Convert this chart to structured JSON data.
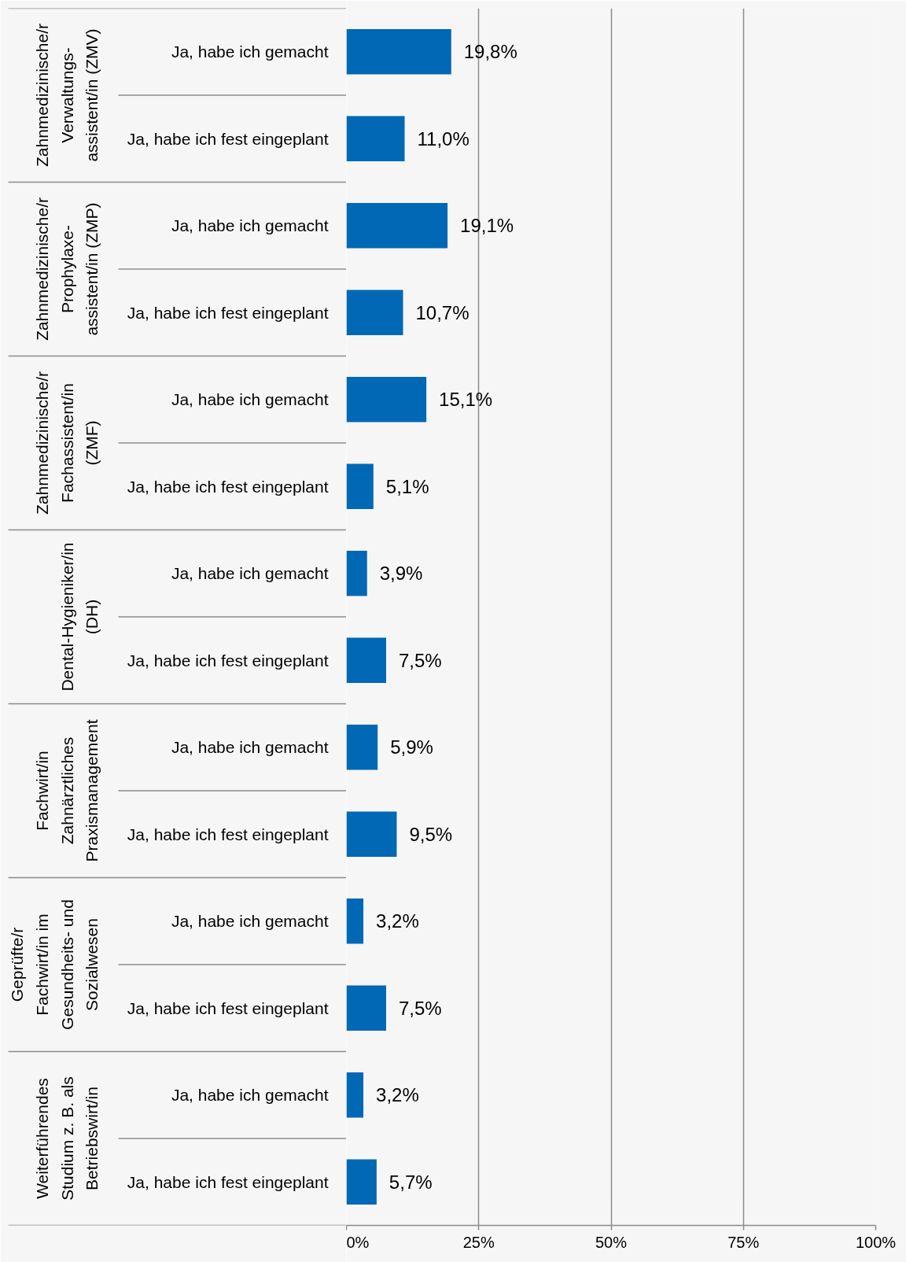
{
  "chart_data": {
    "type": "bar",
    "orientation": "horizontal",
    "categories": [
      "Ja, habe ich gemacht",
      "Ja, habe ich fest eingeplant",
      "Ja, habe ich gemacht",
      "Ja, habe ich fest eingeplant",
      "Ja, habe ich gemacht",
      "Ja, habe ich fest eingeplant",
      "Ja, habe ich gemacht",
      "Ja, habe ich fest eingeplant",
      "Ja, habe ich gemacht",
      "Ja, habe ich fest eingeplant",
      "Ja, habe ich gemacht",
      "Ja, habe ich fest eingeplant",
      "Ja, habe ich gemacht",
      "Ja, habe ich fest eingeplant"
    ],
    "values": [
      19.8,
      11.0,
      19.1,
      10.7,
      15.1,
      5.1,
      3.9,
      7.5,
      5.9,
      9.5,
      3.2,
      7.5,
      3.2,
      5.7
    ],
    "value_labels": [
      "19,8%",
      "11,0%",
      "19,1%",
      "10,7%",
      "15,1%",
      "5,1%",
      "3,9%",
      "7,5%",
      "5,9%",
      "9,5%",
      "3,2%",
      "7,5%",
      "3,2%",
      "5,7%"
    ],
    "color": "#0068b4",
    "xlim": [
      0,
      100
    ],
    "xticks": [
      {
        "value": 0,
        "label": "0%"
      },
      {
        "value": 25,
        "label": "25%"
      },
      {
        "value": 50,
        "label": "50%"
      },
      {
        "value": 75,
        "label": "75%"
      },
      {
        "value": 100,
        "label": "100%"
      }
    ],
    "grid": "x",
    "annotations": [
      "Zahnmedizinische/r\nVerwaltungs-\nassistent/in (ZMV)",
      "Zahnmedizinische/r\nProphylaxe-\nassistent/in (ZMP)",
      "Zahnmedizinische/r\nFachassistent/in\n(ZMF)",
      "Dental-Hygieniker/in\n(DH)",
      "Fachwirt/in\nZahnärztliches\nPraxismanagement",
      "Geprüfte/r\nFachwirt/in im\nGesundheits- und\nSozialwesen",
      "Weiterführendes\nStudium z. B. als\nBetriebswirt/in"
    ]
  }
}
